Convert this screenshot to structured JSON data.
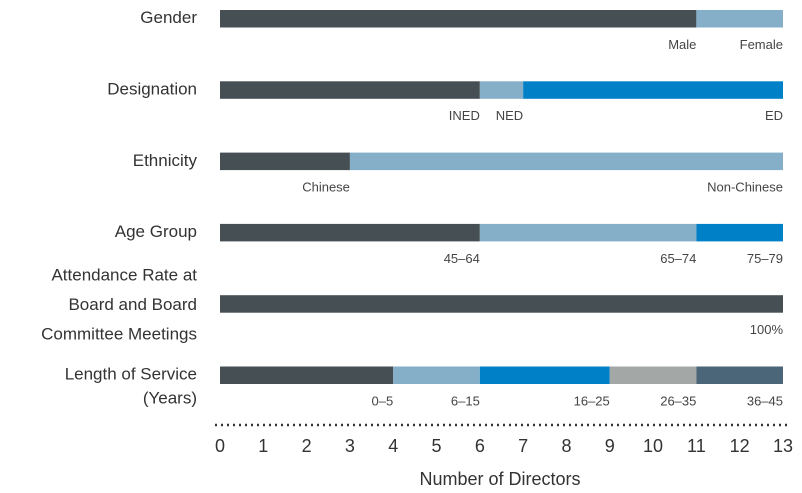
{
  "chart_data": {
    "type": "stacked_bar",
    "xlabel": "Number of Directors",
    "xlim": [
      0,
      13
    ],
    "xticks": [
      0,
      1,
      2,
      3,
      4,
      5,
      6,
      7,
      8,
      9,
      10,
      11,
      12,
      13
    ],
    "rows": [
      {
        "label": [
          "Gender"
        ],
        "segments": [
          {
            "name": "Male",
            "color": "#454f54",
            "value": 11
          },
          {
            "name": "Female",
            "color": "#85aec8",
            "value": 2
          }
        ]
      },
      {
        "label": [
          "Designation"
        ],
        "segments": [
          {
            "name": "INED",
            "color": "#454f54",
            "value": 6
          },
          {
            "name": "NED",
            "color": "#85aec8",
            "value": 1
          },
          {
            "name": "ED",
            "color": "#0080c6",
            "value": 6
          }
        ]
      },
      {
        "label": [
          "Ethnicity"
        ],
        "segments": [
          {
            "name": "Chinese",
            "color": "#454f54",
            "value": 3
          },
          {
            "name": "Non-Chinese",
            "color": "#85aec8",
            "value": 10
          }
        ]
      },
      {
        "label": [
          "Age Group"
        ],
        "segments": [
          {
            "name": "45–64",
            "color": "#454f54",
            "value": 6
          },
          {
            "name": "65–74",
            "color": "#85aec8",
            "value": 5
          },
          {
            "name": "75–79",
            "color": "#0080c6",
            "value": 2
          }
        ]
      },
      {
        "label": [
          "Attendance Rate at",
          "Board and Board",
          "Committee Meetings"
        ],
        "segments": [
          {
            "name": "100%",
            "color": "#454f54",
            "value": 13
          }
        ]
      },
      {
        "label": [
          "Length of Service",
          "(Years)"
        ],
        "segments": [
          {
            "name": "0–5",
            "color": "#454f54",
            "value": 4
          },
          {
            "name": "6–15",
            "color": "#85aec8",
            "value": 2
          },
          {
            "name": "16–25",
            "color": "#0080c6",
            "value": 3
          },
          {
            "name": "26–35",
            "color": "#a3a8a7",
            "value": 2
          },
          {
            "name": "36–45",
            "color": "#4a6678",
            "value": 2
          }
        ]
      }
    ]
  }
}
